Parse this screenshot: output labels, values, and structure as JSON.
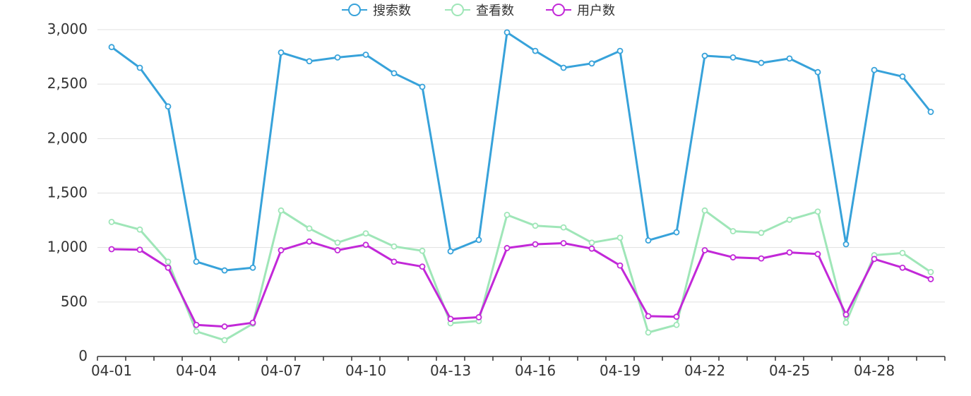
{
  "chart_data": {
    "type": "line",
    "categories": [
      "04-01",
      "04-02",
      "04-03",
      "04-04",
      "04-05",
      "04-06",
      "04-07",
      "04-08",
      "04-09",
      "04-10",
      "04-11",
      "04-12",
      "04-13",
      "04-14",
      "04-15",
      "04-16",
      "04-17",
      "04-18",
      "04-19",
      "04-20",
      "04-21",
      "04-22",
      "04-23",
      "04-24",
      "04-25",
      "04-26",
      "04-27",
      "04-28",
      "04-29",
      "04-30"
    ],
    "x_tick_labels": [
      "04-01",
      "04-04",
      "04-07",
      "04-10",
      "04-13",
      "04-16",
      "04-19",
      "04-22",
      "04-25",
      "04-28"
    ],
    "y_tick_labels": [
      "0",
      "500",
      "1,000",
      "1,500",
      "2,000",
      "2,500",
      "3,000"
    ],
    "ylim": [
      0,
      3000
    ],
    "grid": true,
    "legend_position": "top-center",
    "series": [
      {
        "name": "搜索数",
        "color": "#37a2da",
        "values": [
          2840,
          2650,
          2295,
          870,
          790,
          815,
          2790,
          2710,
          2745,
          2770,
          2600,
          2475,
          965,
          1070,
          2975,
          2805,
          2650,
          2690,
          2805,
          1065,
          1140,
          2760,
          2745,
          2695,
          2735,
          2610,
          1030,
          2630,
          2570,
          2245
        ]
      },
      {
        "name": "查看数",
        "color": "#9fe6b8",
        "values": [
          1235,
          1165,
          870,
          230,
          150,
          300,
          1340,
          1175,
          1045,
          1130,
          1010,
          970,
          305,
          325,
          1300,
          1200,
          1185,
          1045,
          1090,
          220,
          290,
          1340,
          1150,
          1135,
          1255,
          1330,
          310,
          930,
          950,
          775
        ]
      },
      {
        "name": "用户数",
        "color": "#c228d8",
        "values": [
          985,
          980,
          815,
          290,
          275,
          310,
          975,
          1055,
          975,
          1025,
          870,
          825,
          345,
          360,
          995,
          1030,
          1040,
          990,
          835,
          370,
          365,
          975,
          910,
          900,
          955,
          940,
          385,
          895,
          815,
          710
        ]
      }
    ]
  }
}
